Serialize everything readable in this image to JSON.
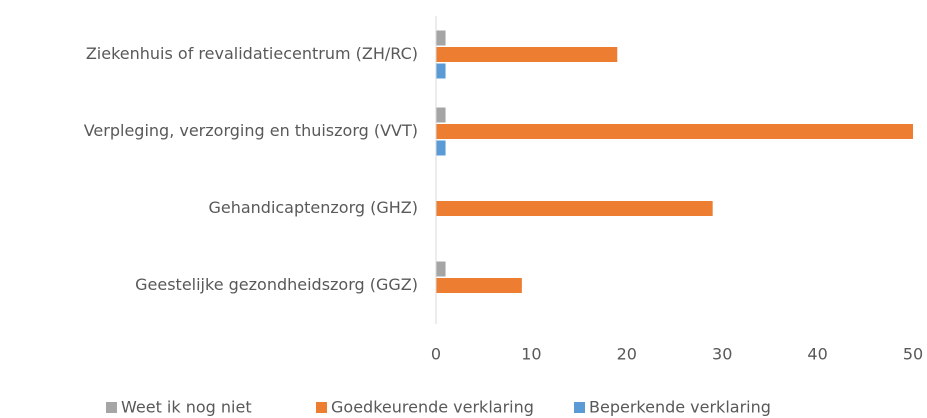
{
  "chart_data": {
    "type": "bar",
    "categories": [
      "Ziekenhuis of revalidatiecentrum (ZH/RC)",
      "Verpleging, verzorging en thuiszorg (VVT)",
      "Gehandicaptenzorg (GHZ)",
      "Geestelijke gezondheidszorg (GGZ)"
    ],
    "series": [
      {
        "name": "Weet ik nog niet",
        "color": "#a5a5a5",
        "values": [
          1,
          1,
          0,
          1
        ]
      },
      {
        "name": "Goedkeurende verklaring",
        "color": "#ed7d31",
        "values": [
          19,
          50,
          29,
          9
        ]
      },
      {
        "name": "Beperkende verklaring",
        "color": "#5b9bd5",
        "values": [
          1,
          1,
          0,
          0
        ]
      }
    ],
    "xlim": [
      0,
      50
    ],
    "xticks": [
      0,
      10,
      20,
      30,
      40,
      50
    ],
    "grid": false,
    "legend": "bottom"
  }
}
